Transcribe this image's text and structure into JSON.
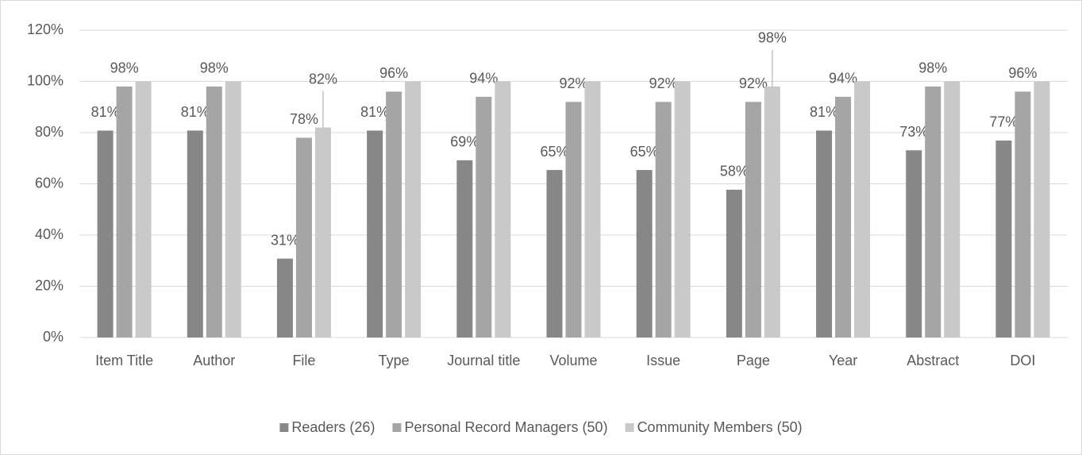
{
  "chart_data": {
    "type": "bar",
    "categories": [
      "Item Title",
      "Author",
      "File",
      "Type",
      "Journal title",
      "Volume",
      "Issue",
      "Page",
      "Year",
      "Abstract",
      "DOI"
    ],
    "series": [
      {
        "name": "Readers (26)",
        "color": "#878787",
        "values": [
          80.8,
          80.8,
          30.8,
          80.8,
          69.2,
          65.4,
          65.4,
          57.7,
          80.8,
          73.1,
          76.9
        ],
        "value_labels": [
          "81%",
          "81%",
          "31%",
          "81%",
          "69%",
          "65%",
          "65%",
          "58%",
          "81%",
          "73%",
          "77%"
        ]
      },
      {
        "name": "Personal Record Managers (50)",
        "color": "#a5a5a5",
        "values": [
          98,
          98,
          78,
          96,
          94,
          92,
          92,
          92,
          94,
          98,
          96
        ],
        "value_labels": [
          "98%",
          "98%",
          "78%",
          "96%",
          "94%",
          "92%",
          "92%",
          "92%",
          "94%",
          "98%",
          "96%"
        ]
      },
      {
        "name": "Community Members (50)",
        "color": "#c9c9c9",
        "values": [
          100,
          100,
          82,
          100,
          100,
          100,
          100,
          98,
          100,
          100,
          100
        ],
        "value_labels": [
          null,
          null,
          "82%",
          null,
          null,
          null,
          null,
          "98%",
          null,
          null,
          null
        ]
      }
    ],
    "ylim": [
      0,
      120
    ],
    "yticks": [
      {
        "value": 0,
        "label": "0%"
      },
      {
        "value": 20,
        "label": "20%"
      },
      {
        "value": 40,
        "label": "40%"
      },
      {
        "value": 60,
        "label": "60%"
      },
      {
        "value": 80,
        "label": "80%"
      },
      {
        "value": 100,
        "label": "100%"
      },
      {
        "value": 120,
        "label": "120%"
      }
    ],
    "grid": true,
    "legend": "bottom"
  }
}
